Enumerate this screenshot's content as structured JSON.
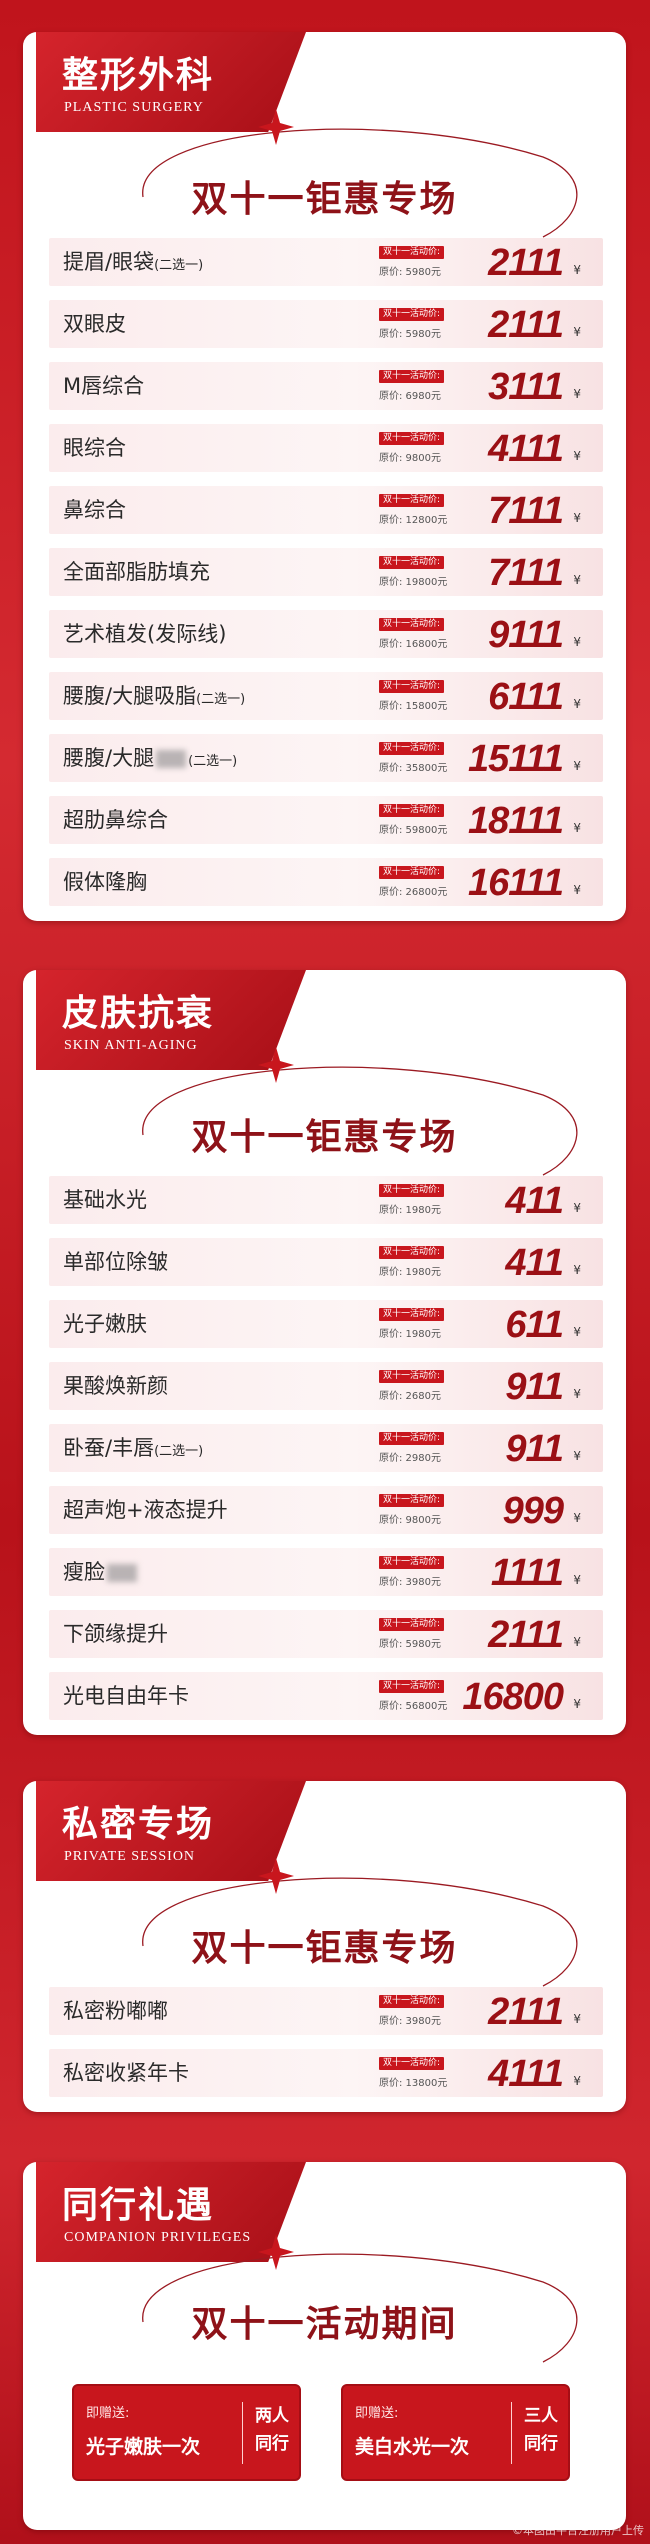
{
  "sections": [
    {
      "title": "整形外科",
      "subtitle": "PLASTIC SURGERY",
      "banner": "双十一钜惠专场",
      "items": [
        {
          "name": "提眉/眼袋",
          "note": "(二选一)",
          "promo": "双十一活动价:",
          "original": "原价: 5980元",
          "price": "2111",
          "currency": "¥"
        },
        {
          "name": "双眼皮",
          "promo": "双十一活动价:",
          "original": "原价: 5980元",
          "price": "2111",
          "currency": "¥"
        },
        {
          "name": "M唇综合",
          "promo": "双十一活动价:",
          "original": "原价: 6980元",
          "price": "3111",
          "currency": "¥"
        },
        {
          "name": "眼综合",
          "promo": "双十一活动价:",
          "original": "原价: 9800元",
          "price": "4111",
          "currency": "¥"
        },
        {
          "name": "鼻综合",
          "promo": "双十一活动价:",
          "original": "原价: 12800元",
          "price": "7111",
          "currency": "¥"
        },
        {
          "name": "全面部脂肪填充",
          "promo": "双十一活动价:",
          "original": "原价: 19800元",
          "price": "7111",
          "currency": "¥"
        },
        {
          "name": "艺术植发(发际线)",
          "promo": "双十一活动价:",
          "original": "原价: 16800元",
          "price": "9111",
          "currency": "¥"
        },
        {
          "name": "腰腹/大腿吸脂",
          "note": "(二选一)",
          "promo": "双十一活动价:",
          "original": "原价: 15800元",
          "price": "6111",
          "currency": "¥"
        },
        {
          "name": "腰腹/大腿",
          "redacted": true,
          "note": "(二选一)",
          "promo": "双十一活动价:",
          "original": "原价: 35800元",
          "price": "15111",
          "currency": "¥"
        },
        {
          "name": "超肋鼻综合",
          "promo": "双十一活动价:",
          "original": "原价: 59800元",
          "price": "18111",
          "currency": "¥"
        },
        {
          "name": "假体隆胸",
          "promo": "双十一活动价:",
          "original": "原价: 26800元",
          "price": "16111",
          "currency": "¥"
        }
      ]
    },
    {
      "title": "皮肤抗衰",
      "subtitle": "SKIN ANTI-AGING",
      "banner": "双十一钜惠专场",
      "items": [
        {
          "name": "基础水光",
          "promo": "双十一活动价:",
          "original": "原价: 1980元",
          "price": "411",
          "currency": "¥"
        },
        {
          "name": "单部位除皱",
          "promo": "双十一活动价:",
          "original": "原价: 1980元",
          "price": "411",
          "currency": "¥"
        },
        {
          "name": "光子嫩肤",
          "promo": "双十一活动价:",
          "original": "原价: 1980元",
          "price": "611",
          "currency": "¥"
        },
        {
          "name": "果酸焕新颜",
          "promo": "双十一活动价:",
          "original": "原价: 2680元",
          "price": "911",
          "currency": "¥"
        },
        {
          "name": "卧蚕/丰唇",
          "note": "(二选一)",
          "promo": "双十一活动价:",
          "original": "原价: 2980元",
          "price": "911",
          "currency": "¥"
        },
        {
          "name": "超声炮+液态提升",
          "promo": "双十一活动价:",
          "original": "原价: 9800元",
          "price": "999",
          "currency": "¥"
        },
        {
          "name": "瘦脸",
          "redacted": true,
          "promo": "双十一活动价:",
          "original": "原价: 3980元",
          "price": "1111",
          "currency": "¥"
        },
        {
          "name": "下颌缘提升",
          "promo": "双十一活动价:",
          "original": "原价: 5980元",
          "price": "2111",
          "currency": "¥"
        },
        {
          "name": "光电自由年卡",
          "promo": "双十一活动价:",
          "original": "原价: 56800元",
          "price": "16800",
          "currency": "¥"
        }
      ]
    },
    {
      "title": "私密专场",
      "subtitle": "PRIVATE SESSION",
      "banner": "双十一钜惠专场",
      "items": [
        {
          "name": "私密粉嘟嘟",
          "promo": "双十一活动价:",
          "original": "原价: 3980元",
          "price": "2111",
          "currency": "¥"
        },
        {
          "name": "私密收紧年卡",
          "promo": "双十一活动价:",
          "original": "原价: 13800元",
          "price": "4111",
          "currency": "¥"
        }
      ]
    }
  ],
  "privileges": {
    "title": "同行礼遇",
    "subtitle": "COMPANION PRIVILEGES",
    "banner": "双十一活动期间",
    "offers": [
      {
        "label": "即赠送:",
        "gift": "光子嫩肤一次",
        "condition": [
          "两人",
          "同行"
        ]
      },
      {
        "label": "即赠送:",
        "gift": "美白水光一次",
        "condition": [
          "三人",
          "同行"
        ]
      }
    ]
  },
  "watermark": "©本图由平台注册用户上传"
}
